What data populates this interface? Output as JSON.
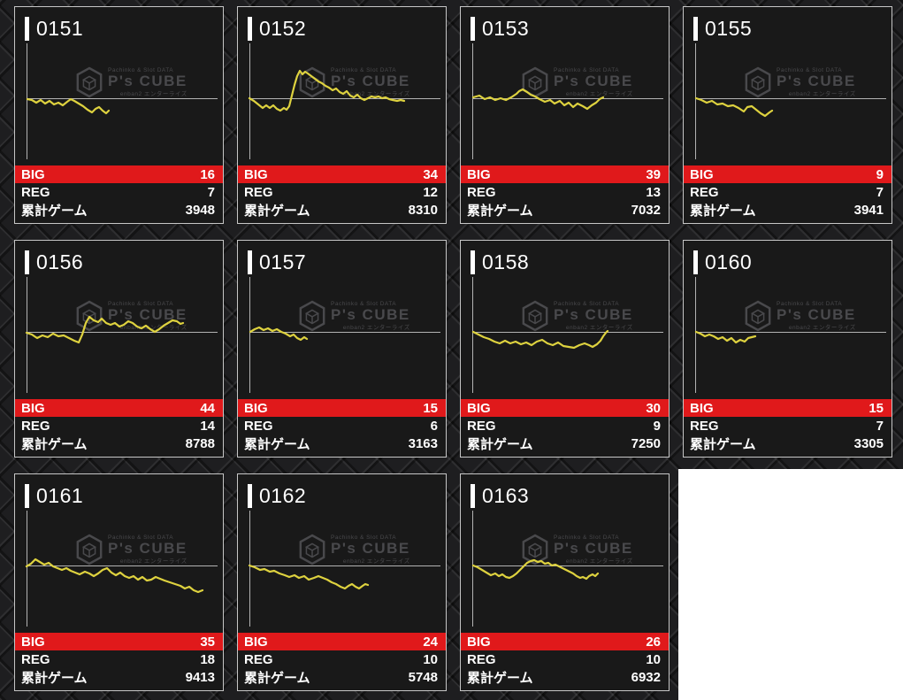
{
  "watermark": {
    "top": "Pachinko & Slot DATA",
    "main": "P's CUBE",
    "bottom": "enban2 エンターライズ"
  },
  "labels": {
    "big": "BIG",
    "reg": "REG",
    "total": "累計ゲーム"
  },
  "colors": {
    "accent_red": "#e0191b",
    "line_yellow": "#ded23f",
    "axis_gray": "#b3b3b3",
    "card_bg": "#191919",
    "card_border": "#c6c6c6",
    "empty_slot": "#ffffff"
  },
  "machines": [
    {
      "id": "0151",
      "big": 16,
      "reg": 7,
      "total": 3948,
      "graph": "5,66 10,67 15,70 20,67 25,71 30,68 35,72 40,70 45,73 50,69 54,66 58,68 63,71 68,74 73,78 78,81 82,77 86,75 90,79 94,82 97,79"
    },
    {
      "id": "0152",
      "big": 34,
      "reg": 12,
      "total": 8310,
      "graph": "4,65 9,68 14,72 19,76 23,73 27,76 31,73 35,77 39,79 43,76 46,78 49,74 52,62 55,50 58,40 61,34 64,38 67,35 70,37 74,40 78,43 82,46 86,48 90,51 94,53 98,56 102,54 106,58 110,60 114,57 118,62 122,64 126,61 130,65 134,67 138,65 142,63 146,64 150,63 154,65 158,64 162,66 166,67 171,68 175,67 179,68"
    },
    {
      "id": "0153",
      "big": 39,
      "reg": 13,
      "total": 7032,
      "graph": "5,64 12,62 18,66 24,64 30,67 36,65 42,67 48,64 54,60 57,57 61,55 66,58 70,61 75,63 80,66 86,69 92,67 97,71 103,68 108,73 113,70 118,75 123,71 129,74 134,77 139,73 144,70 148,66 152,64"
    },
    {
      "id": "0155",
      "big": 9,
      "reg": 7,
      "total": 3941,
      "graph": "5,65 11,67 17,70 23,68 29,72 35,71 41,74 47,73 53,76 59,80 63,75 68,74 73,78 78,82 83,85 88,81 91,79"
    },
    {
      "id": "0156",
      "big": 44,
      "reg": 14,
      "total": 8788,
      "graph": "4,66 10,68 16,72 22,69 28,71 34,67 40,70 46,69 52,72 58,75 63,77 67,68 71,55 75,48 80,52 85,54 89,50 94,55 99,57 104,55 109,59 114,57 119,53 124,55 129,59 134,61 139,58 144,62 149,65 154,62 159,58 164,55 169,52 174,53 178,56 181,55"
    },
    {
      "id": "0157",
      "big": 15,
      "reg": 6,
      "total": 3163,
      "graph": "5,65 10,62 15,60 20,63 25,61 30,64 35,62 40,65 45,67 50,70 54,68 58,72 62,74 66,71 69,73"
    },
    {
      "id": "0158",
      "big": 30,
      "reg": 9,
      "total": 7250,
      "graph": "5,65 11,68 17,71 23,73 29,76 35,78 41,75 47,78 53,76 59,79 65,77 71,80 77,76 83,74 89,78 95,80 101,77 107,81 113,82 119,83 125,80 131,78 136,80 140,82 145,79 149,75 152,70 155,66 157,64"
    },
    {
      "id": "0160",
      "big": 15,
      "reg": 7,
      "total": 3305,
      "graph": "5,65 10,67 15,70 20,68 25,70 30,73 35,71 40,75 45,72 50,77 55,74 60,76 64,72 68,71 72,70"
    },
    {
      "id": "0161",
      "big": 35,
      "reg": 18,
      "total": 9413,
      "graph": "4,66 9,63 14,58 19,61 24,64 29,62 34,66 39,68 44,70 49,68 54,71 59,73 64,75 70,72 75,74 80,77 85,74 90,70 95,68 100,73 105,76 110,73 115,77 120,79 125,77 130,81 135,78 140,82 145,81 150,78 155,80 160,82 166,84 172,86 178,88 183,91 188,89 193,93 198,95 203,93"
    },
    {
      "id": "0162",
      "big": 24,
      "reg": 10,
      "total": 5748,
      "graph": "4,65 10,67 16,70 21,69 27,72 32,71 38,74 44,76 49,78 55,76 60,79 66,77 71,81 77,79 82,77 87,79 92,81 97,84 102,86 107,89 112,91 116,88 120,86 124,89 128,91 132,88 135,86 138,87"
    },
    {
      "id": "0163",
      "big": 26,
      "reg": 10,
      "total": 6932,
      "graph": "5,65 10,67 15,70 20,73 25,76 30,74 34,77 38,75 42,78 46,79 50,77 54,74 58,70 62,66 66,62 70,60 74,59 78,61 82,60 86,63 90,62 94,65 98,64 102,66 106,68 110,70 114,72 118,74 122,77 126,79 129,78 133,80 136,77 140,75 143,77 146,74"
    }
  ]
}
